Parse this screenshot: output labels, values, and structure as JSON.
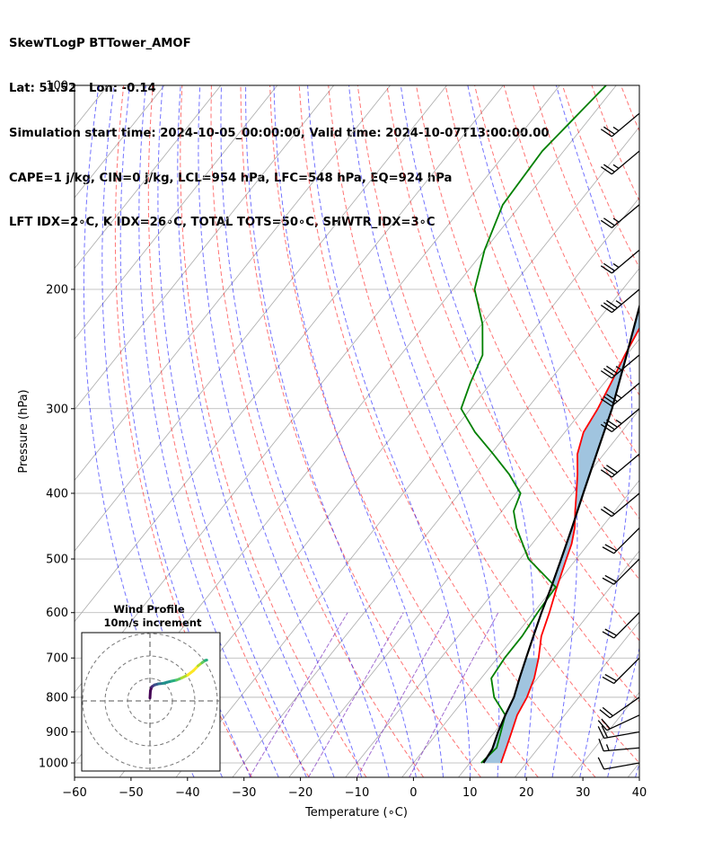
{
  "header": {
    "line1": "SkewTLogP BTTower_AMOF",
    "line2": "Lat: 51.52   Lon: -0.14",
    "line3": "Simulation start time: 2024-10-05_00:00:00, Valid time: 2024-10-07T13:00:00.00",
    "line4": "CAPE=1 j/kg, CIN=0 j/kg, LCL=954 hPa, LFC=548 hPa, EQ=924 hPa",
    "line5": "LFT IDX=2∘C, K IDX=26∘C, TOTAL TOTS=50∘C, SHWTR_IDX=3∘C"
  },
  "inset": {
    "title1": "Wind Profile",
    "title2": "10m/s increment"
  },
  "colors": {
    "temperature": "#ff0000",
    "dewpoint": "#008000",
    "parcel": "#000000",
    "cape_fill": "#a0c4df",
    "dry_adiabat": "#ff0000",
    "moist_adiabat": "#0000ff",
    "mixing_ratio": "#7b2fbe",
    "isotherm": "#aaaaaa"
  },
  "chart_data": {
    "type": "skew-t",
    "xlabel": "Temperature (∘C)",
    "ylabel": "Pressure (hPa)",
    "xlim": [
      -60,
      40
    ],
    "ylim": [
      1050,
      100
    ],
    "y_scale": "log",
    "grid": true,
    "x_ticks": [
      "−60",
      "−50",
      "−40",
      "−30",
      "−20",
      "−10",
      "0",
      "10",
      "20",
      "30",
      "40"
    ],
    "y_ticks": [
      "100",
      "200",
      "300",
      "400",
      "500",
      "600",
      "700",
      "800",
      "900",
      "1000"
    ],
    "series": [
      {
        "key": "temperature",
        "points": [
          [
            15.5,
            1000
          ],
          [
            14.3,
            950
          ],
          [
            13.0,
            900
          ],
          [
            11.6,
            850
          ],
          [
            10.8,
            800
          ],
          [
            9.4,
            750
          ],
          [
            7.3,
            700
          ],
          [
            4.7,
            650
          ],
          [
            2.8,
            600
          ],
          [
            0.5,
            550
          ],
          [
            -1.8,
            500
          ],
          [
            -3.0,
            475
          ],
          [
            -4.7,
            450
          ],
          [
            -7.0,
            425
          ],
          [
            -9.3,
            400
          ],
          [
            -11.8,
            375
          ],
          [
            -14.7,
            350
          ],
          [
            -16.7,
            325
          ],
          [
            -17.5,
            300
          ],
          [
            -18.8,
            275
          ],
          [
            -20.3,
            250
          ],
          [
            -21.7,
            225
          ],
          [
            -23.1,
            200
          ],
          [
            -23.7,
            175
          ],
          [
            -23.8,
            150
          ],
          [
            -23.5,
            125
          ],
          [
            -24.4,
            100
          ]
        ]
      },
      {
        "key": "dewpoint",
        "points": [
          [
            12.0,
            1000
          ],
          [
            12.6,
            950
          ],
          [
            11.1,
            900
          ],
          [
            9.5,
            850
          ],
          [
            5.0,
            800
          ],
          [
            1.8,
            750
          ],
          [
            1.3,
            700
          ],
          [
            1.3,
            650
          ],
          [
            0.7,
            600
          ],
          [
            0.3,
            550
          ],
          [
            -8.5,
            500
          ],
          [
            -15.0,
            450
          ],
          [
            -17.9,
            425
          ],
          [
            -19.2,
            400
          ],
          [
            -23.9,
            375
          ],
          [
            -29.6,
            350
          ],
          [
            -35.9,
            325
          ],
          [
            -41.7,
            300
          ],
          [
            -43.7,
            275
          ],
          [
            -45.5,
            250
          ],
          [
            -49.9,
            225
          ],
          [
            -56.2,
            200
          ],
          [
            -60.0,
            175
          ],
          [
            -63.2,
            150
          ],
          [
            -63.8,
            125
          ],
          [
            -61.8,
            100
          ]
        ]
      },
      {
        "key": "parcel",
        "points": [
          [
            12.4,
            1000
          ],
          [
            12.0,
            954
          ],
          [
            10.6,
            900
          ],
          [
            9.5,
            850
          ],
          [
            8.5,
            800
          ],
          [
            6.8,
            750
          ],
          [
            5.1,
            700
          ],
          [
            3.3,
            650
          ],
          [
            1.4,
            600
          ],
          [
            -0.5,
            550
          ],
          [
            -2.7,
            500
          ],
          [
            -5.2,
            450
          ],
          [
            -8.1,
            400
          ],
          [
            -11.3,
            350
          ],
          [
            -15.0,
            300
          ],
          [
            -20.0,
            250
          ],
          [
            -26.2,
            200
          ],
          [
            -35.9,
            150
          ],
          [
            -51.0,
            100
          ]
        ]
      }
    ],
    "wind_barbs": [
      {
        "p": 1000,
        "speed_kt": 10,
        "direction_deg": 260
      },
      {
        "p": 950,
        "speed_kt": 15,
        "direction_deg": 265
      },
      {
        "p": 900,
        "speed_kt": 20,
        "direction_deg": 260
      },
      {
        "p": 850,
        "speed_kt": 20,
        "direction_deg": 245
      },
      {
        "p": 800,
        "speed_kt": 20,
        "direction_deg": 235
      },
      {
        "p": 700,
        "speed_kt": 20,
        "direction_deg": 225
      },
      {
        "p": 600,
        "speed_kt": 20,
        "direction_deg": 225
      },
      {
        "p": 500,
        "speed_kt": 20,
        "direction_deg": 225
      },
      {
        "p": 450,
        "speed_kt": 20,
        "direction_deg": 225
      },
      {
        "p": 400,
        "speed_kt": 20,
        "direction_deg": 230
      },
      {
        "p": 350,
        "speed_kt": 30,
        "direction_deg": 230
      },
      {
        "p": 300,
        "speed_kt": 35,
        "direction_deg": 230
      },
      {
        "p": 275,
        "speed_kt": 35,
        "direction_deg": 230
      },
      {
        "p": 250,
        "speed_kt": 35,
        "direction_deg": 230
      },
      {
        "p": 200,
        "speed_kt": 35,
        "direction_deg": 230
      },
      {
        "p": 175,
        "speed_kt": 25,
        "direction_deg": 230
      },
      {
        "p": 150,
        "speed_kt": 25,
        "direction_deg": 230
      },
      {
        "p": 125,
        "speed_kt": 25,
        "direction_deg": 230
      },
      {
        "p": 110,
        "speed_kt": 25,
        "direction_deg": 230
      }
    ],
    "hodograph": {
      "title": "Wind Profile",
      "subtitle": "10m/s increment",
      "rings_ms": [
        10,
        20,
        30
      ],
      "u_ms": [
        0.0,
        0.2,
        0.8,
        2.0,
        3.8,
        5.8,
        7.6,
        9.6,
        11.9,
        14.1,
        16.8,
        19.4,
        21.4,
        23.2,
        24.6,
        25.3
      ],
      "v_ms": [
        1.3,
        4.5,
        6.3,
        7.1,
        7.6,
        7.8,
        8.3,
        8.8,
        9.3,
        10.2,
        11.5,
        13.5,
        15.6,
        17.0,
        18.0,
        18.2
      ],
      "colormap": "viridis"
    }
  }
}
